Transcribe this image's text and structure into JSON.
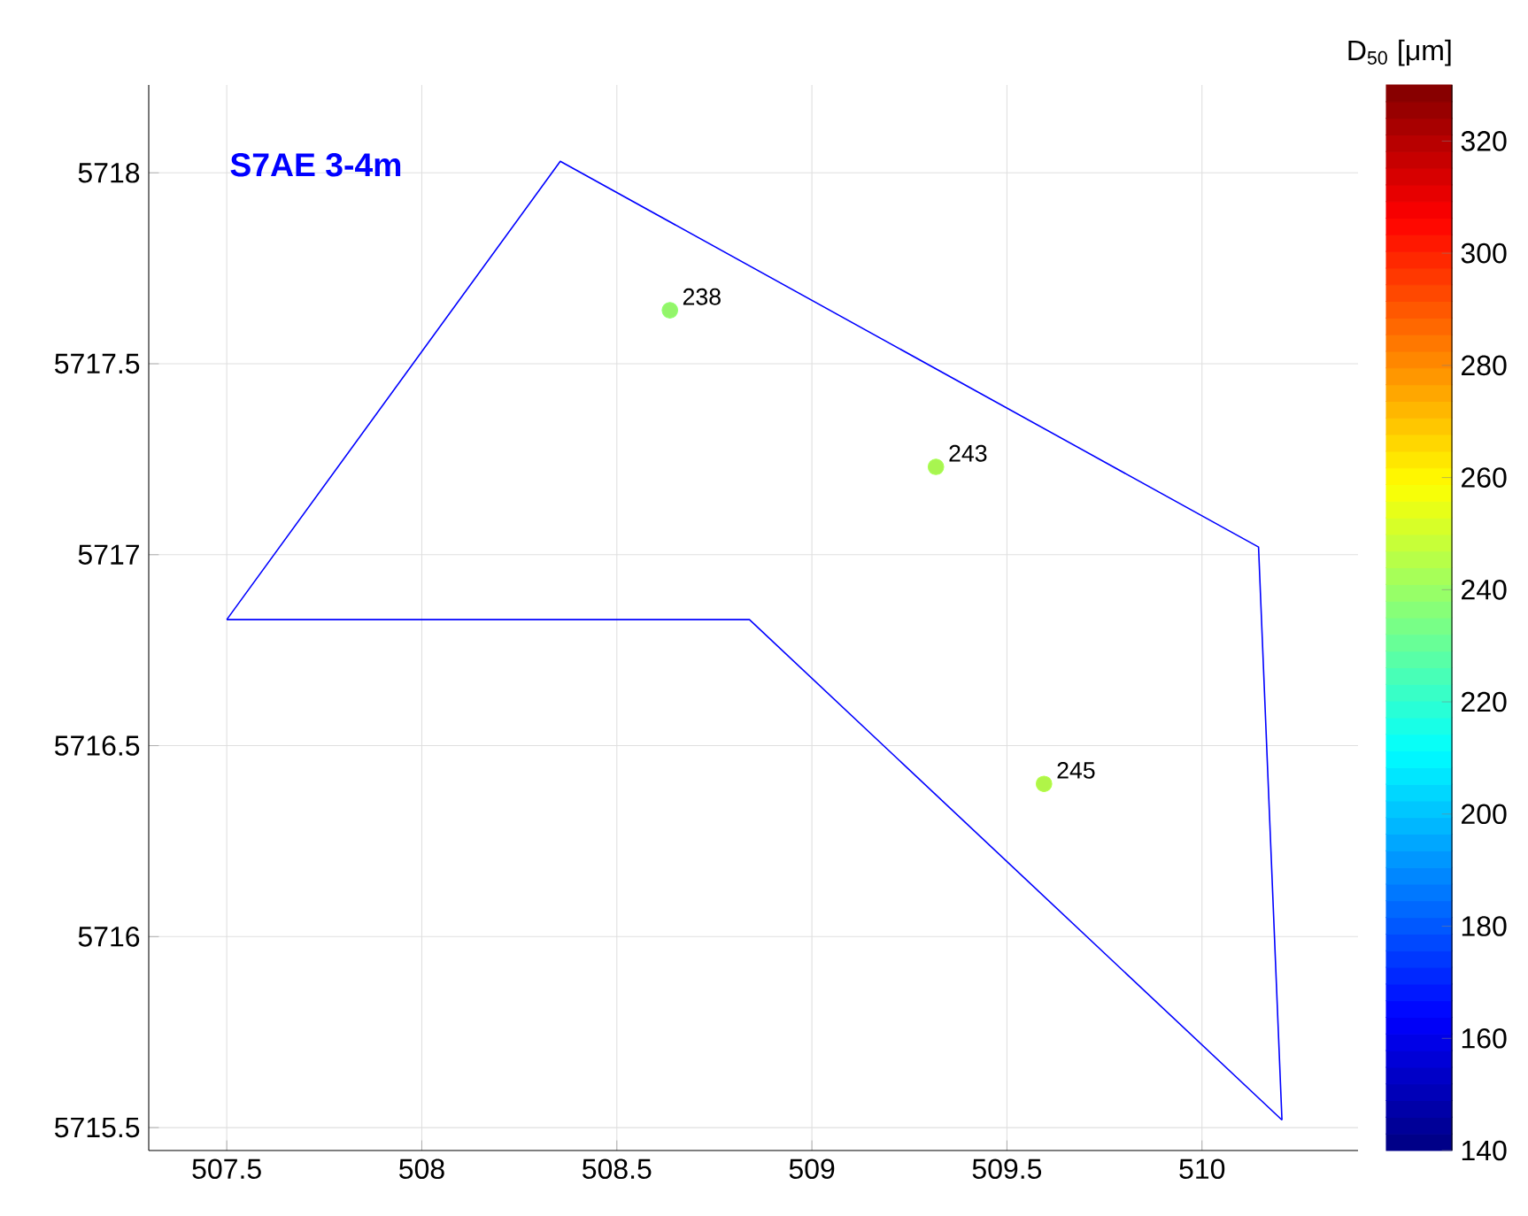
{
  "chart_data": {
    "type": "scatter",
    "title": "S7AE 3-4m",
    "clabel": "D$_{50}$ [μm]",
    "xlim": [
      507.3,
      510.4
    ],
    "ylim": [
      5715.44,
      5718.23
    ],
    "xticks": [
      507.5,
      508,
      508.5,
      509,
      509.5,
      510
    ],
    "yticks": [
      5715.5,
      5716,
      5716.5,
      5717,
      5717.5,
      5718
    ],
    "clim": [
      140,
      330
    ],
    "cticks": [
      140,
      160,
      180,
      200,
      220,
      240,
      260,
      280,
      300,
      320
    ],
    "grid": true,
    "series": [
      {
        "type": "line",
        "color": "#0000ff",
        "x": [
          507.5,
          508.355,
          510.145,
          510.205
        ],
        "values": [
          5716.83,
          5718.03,
          5717.02,
          5715.52
        ]
      },
      {
        "type": "line",
        "color": "#0000ff",
        "x": [
          507.5,
          508.84,
          510.205
        ],
        "values": [
          5716.83,
          5716.83,
          5715.52
        ]
      },
      {
        "marker": "circle",
        "x": [
          508.636,
          509.318,
          509.595
        ],
        "values": [
          5717.64,
          5717.23,
          5716.4
        ],
        "cvalues": [
          238,
          243,
          245
        ],
        "colors": [
          "#93f56a",
          "#a8f550",
          "#b0f548"
        ]
      }
    ],
    "annotations": [
      {
        "text": "238",
        "x": 508.636,
        "y": 5717.64
      },
      {
        "text": "243",
        "x": 509.318,
        "y": 5717.23
      },
      {
        "text": "245",
        "x": 509.595,
        "y": 5716.4
      }
    ]
  }
}
